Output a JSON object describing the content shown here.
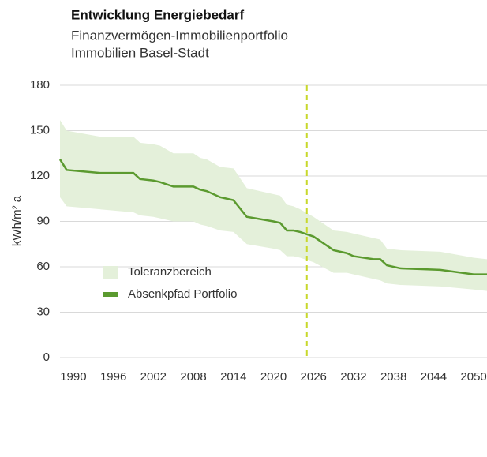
{
  "chart_data": {
    "type": "line",
    "title": "Entwicklung Energiebedarf",
    "subtitle": [
      "Finanzvermögen-Immobilienportfolio",
      "Immobilien Basel-Stadt"
    ],
    "y_label": "kWh/m² a",
    "x": [
      1988,
      1989,
      1994,
      1999,
      2000,
      2002,
      2003,
      2005,
      2008,
      2009,
      2010,
      2012,
      2014,
      2016,
      2020,
      2021,
      2022,
      2023,
      2024,
      2026,
      2029,
      2031,
      2032,
      2035,
      2036,
      2037,
      2039,
      2045,
      2050,
      2052
    ],
    "series": [
      {
        "name": "Toleranzbereich",
        "type": "band",
        "color": "#e4f0da",
        "upper": [
          157,
          150,
          146,
          146,
          142,
          141,
          140,
          135,
          135,
          132,
          131,
          126,
          125,
          112,
          108,
          107,
          101,
          100,
          98,
          93,
          84,
          83,
          82,
          79,
          78,
          72,
          71,
          70,
          66,
          65
        ],
        "lower": [
          106,
          100,
          98,
          96,
          94,
          93,
          92,
          90,
          90,
          88,
          87,
          84,
          83,
          75,
          72,
          71,
          67,
          67,
          66,
          63,
          56,
          56,
          55,
          52,
          51,
          49,
          48,
          47,
          45,
          44
        ]
      },
      {
        "name": "Absenkpfad Portfolio",
        "type": "line",
        "color": "#5b9a2f",
        "values": [
          131,
          124,
          122,
          122,
          118,
          117,
          116,
          113,
          113,
          111,
          110,
          106,
          104,
          93,
          90,
          89,
          84,
          84,
          83,
          80,
          71,
          69,
          67,
          65,
          65,
          61,
          59,
          58,
          55,
          55
        ]
      }
    ],
    "reference_x": 2025,
    "reference_color": "#c8d82c",
    "xlim": [
      1988,
      2052
    ],
    "xticks": [
      1990,
      1996,
      2002,
      2008,
      2014,
      2020,
      2026,
      2032,
      2038,
      2044,
      2050
    ],
    "ylim": [
      0,
      180
    ],
    "yticks": [
      0,
      30,
      60,
      90,
      120,
      150,
      180
    ],
    "grid": true,
    "legend": "bottom"
  }
}
